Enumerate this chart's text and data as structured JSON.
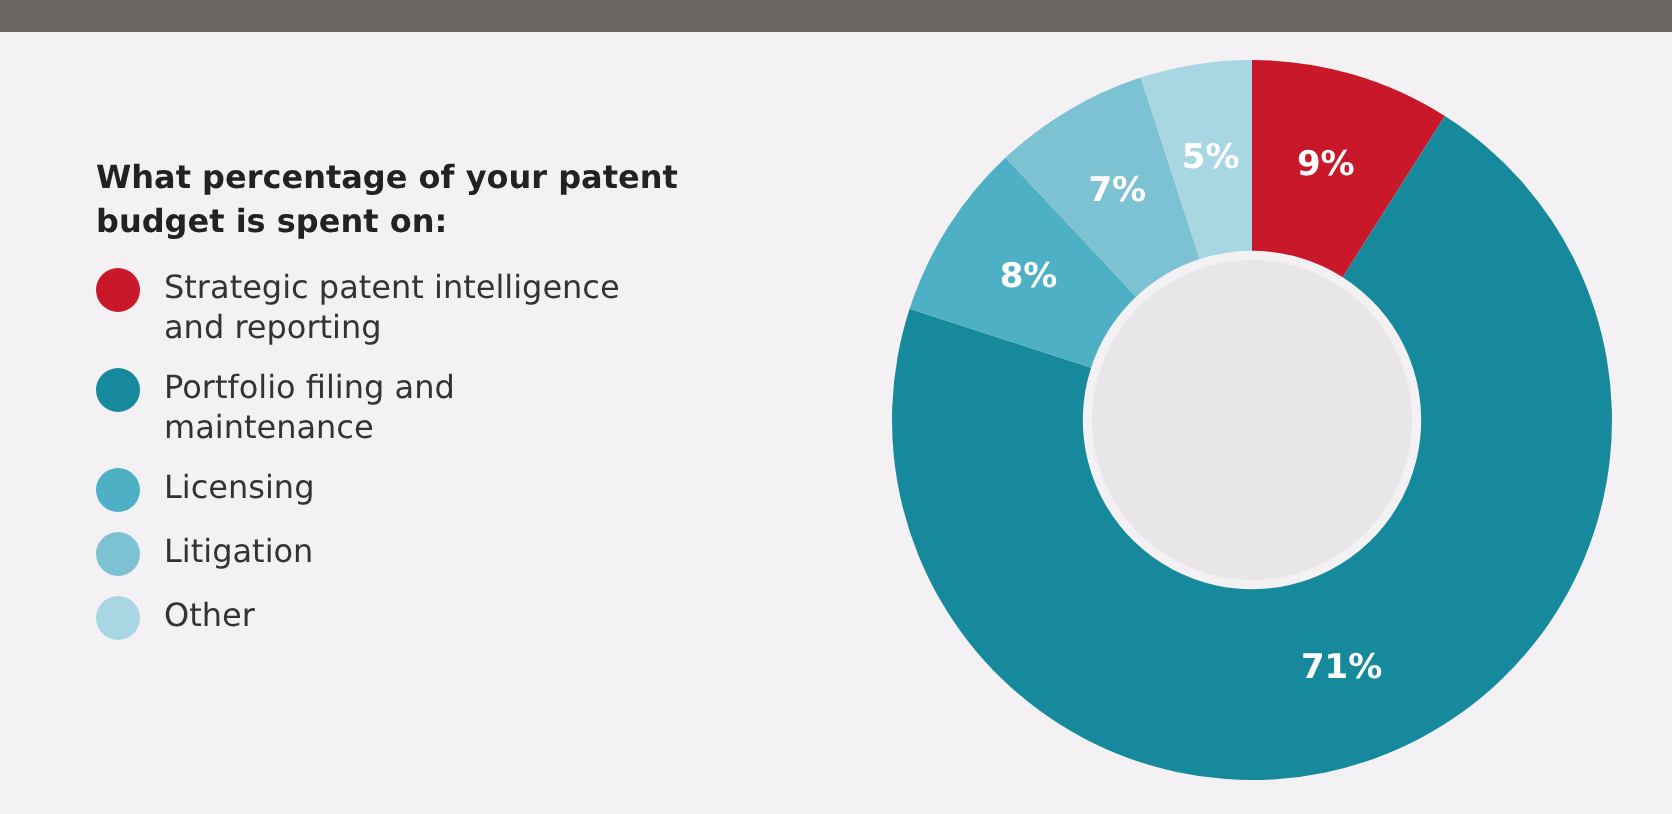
{
  "chart_data": {
    "type": "donut",
    "legend_title": "What percentage of your patent budget is spent on:",
    "categories": [
      "Strategic patent intelligence and reporting",
      "Portfolio filing and maintenance",
      "Licensing",
      "Litigation",
      "Other"
    ],
    "values": [
      9,
      71,
      8,
      7,
      5
    ],
    "value_labels": [
      "9%",
      "71%",
      "8%",
      "7%",
      "5%"
    ],
    "colors": [
      "#c8182a",
      "#168a9c",
      "#4eb0c4",
      "#7cc2d2",
      "#a8d6e2"
    ],
    "legend": "left"
  }
}
